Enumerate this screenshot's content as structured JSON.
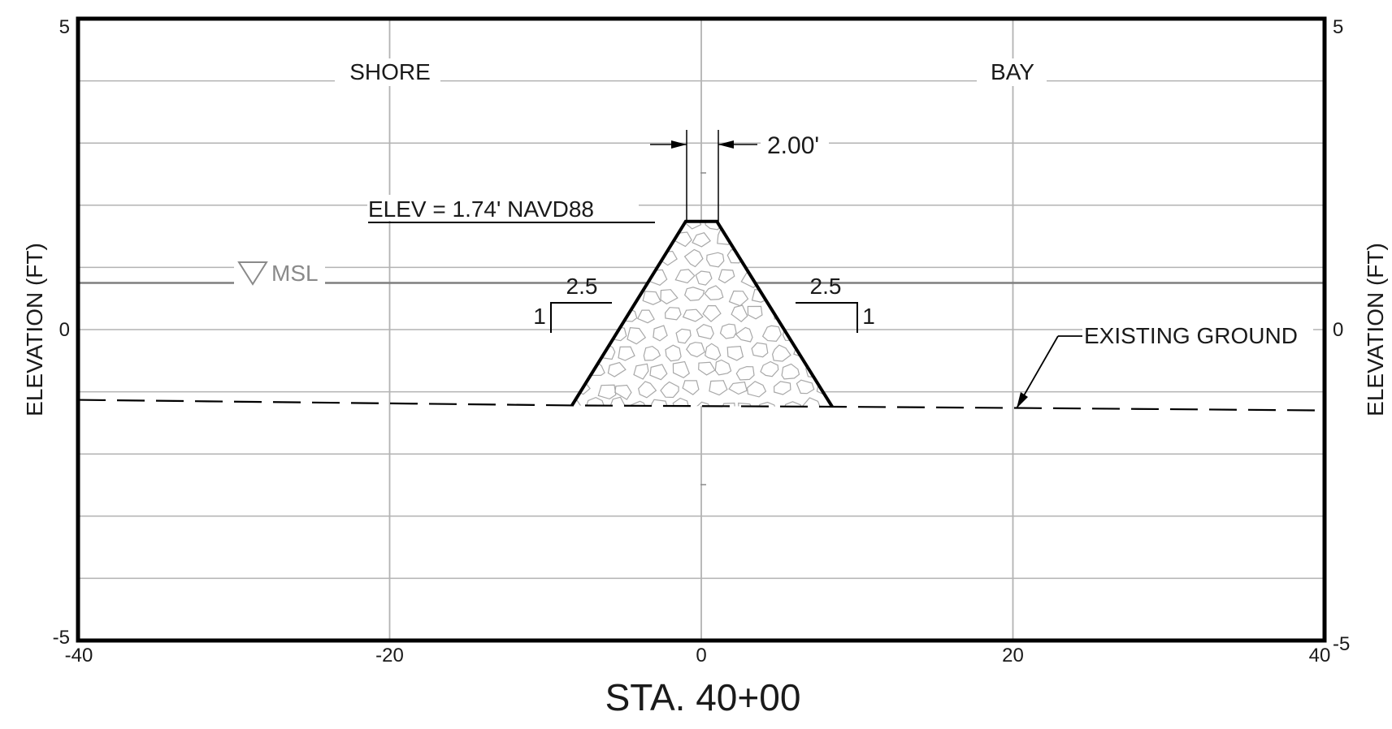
{
  "drawing": {
    "station_title": "STA. 40+00",
    "left_axis_label": "ELEVATION (FT)",
    "right_axis_label": "ELEVATION (FT)",
    "left_side_label": "SHORE",
    "right_side_label": "BAY",
    "crest_elevation_label": "ELEV = 1.74' NAVD88",
    "crest_width_label": "2.00'",
    "msl_label": "MSL",
    "existing_ground_label": "EXISTING GROUND",
    "slope_left": {
      "run": "2.5",
      "rise": "1"
    },
    "slope_right": {
      "run": "2.5",
      "rise": "1"
    }
  },
  "axes": {
    "x_range": [
      -40,
      40
    ],
    "y_range": [
      -5,
      5
    ],
    "x_ticks": [
      "-40",
      "-20",
      "0",
      "20",
      "40"
    ],
    "y_ticks_left": [
      "5",
      "0",
      "-5"
    ],
    "y_ticks_right": [
      "5",
      "0",
      "-5"
    ],
    "y_gridline_step": 1,
    "x_gridlines": [
      -20,
      0,
      20
    ]
  },
  "features": {
    "crest_elevation_ft": 1.74,
    "crest_width_ft": 2.0,
    "side_slope_h_per_v": 2.5,
    "msl_elevation_ft": 0.75,
    "existing_ground_profile": [
      [
        -40,
        -1.13
      ],
      [
        -8.2,
        -1.22
      ],
      [
        8.4,
        -1.24
      ],
      [
        20,
        -1.26
      ],
      [
        40,
        -1.3
      ]
    ],
    "rock_fill_section": [
      [
        -8.3,
        -1.22
      ],
      [
        -1.0,
        1.74
      ],
      [
        1.0,
        1.74
      ],
      [
        8.4,
        -1.24
      ]
    ]
  },
  "colors": {
    "outline": "#000000",
    "grid": "#b3b3b3",
    "msl_line": "#7f7f7f",
    "rock_stroke": "#a8a8a8",
    "rock_fill": "#ffffff"
  }
}
